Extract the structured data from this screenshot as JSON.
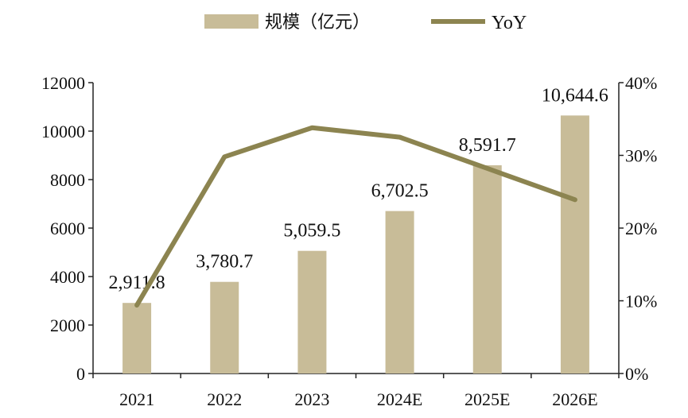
{
  "chart_data": {
    "type": "bar",
    "categories": [
      "2021",
      "2022",
      "2023",
      "2024E",
      "2025E",
      "2026E"
    ],
    "series": [
      {
        "name": "规模（亿元）",
        "type": "bar",
        "axis": "left",
        "values": [
          2911.8,
          3780.7,
          5059.5,
          6702.5,
          8591.7,
          10644.6
        ],
        "labels": [
          "2,911.8",
          "3,780.7",
          "5,059.5",
          "6,702.5",
          "8,591.7",
          "10,644.6"
        ],
        "color": "#C8BC98"
      },
      {
        "name": "YoY",
        "type": "line",
        "axis": "right",
        "values": [
          0.094,
          0.298,
          0.338,
          0.325,
          0.282,
          0.239
        ],
        "color": "#8C8450"
      }
    ],
    "y_left": {
      "min": 0,
      "max": 12000,
      "ticks": [
        0,
        2000,
        4000,
        6000,
        8000,
        10000,
        12000
      ],
      "tick_labels": [
        "0",
        "2000",
        "4000",
        "6000",
        "8000",
        "10000",
        "12000"
      ]
    },
    "y_right": {
      "min": 0,
      "max": 0.4,
      "ticks": [
        0,
        0.1,
        0.2,
        0.3,
        0.4
      ],
      "tick_labels": [
        "0%",
        "10%",
        "20%",
        "30%",
        "40%"
      ]
    },
    "legend_position": "top-center",
    "grid": false
  }
}
